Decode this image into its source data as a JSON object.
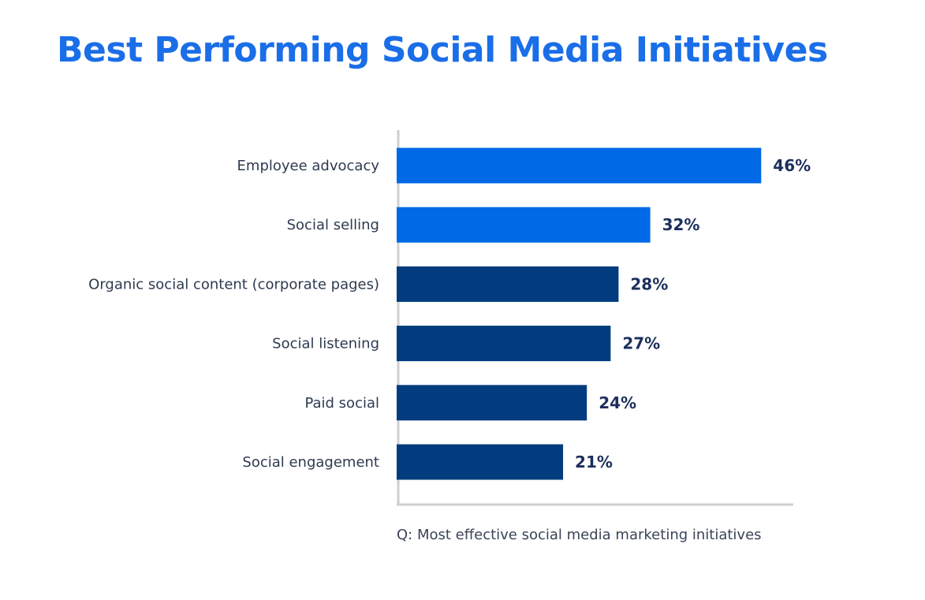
{
  "chart_data": {
    "type": "bar",
    "orientation": "horizontal",
    "title": "Best Performing Social Media Initiatives",
    "note": "Q: Most effective social media marketing initiatives",
    "categories": [
      "Employee advocacy",
      "Social selling",
      "Organic social content (corporate pages)",
      "Social listening",
      "Paid social",
      "Social engagement"
    ],
    "values": [
      46,
      32,
      28,
      27,
      24,
      21
    ],
    "data_labels": [
      "46%",
      "32%",
      "28%",
      "27%",
      "24%",
      "21%"
    ],
    "unit": "%",
    "xlim": [
      0,
      50
    ],
    "grid": false,
    "colors": [
      "#0069e6",
      "#0069e6",
      "#033c7e",
      "#033c7e",
      "#033c7e",
      "#033c7e"
    ]
  }
}
